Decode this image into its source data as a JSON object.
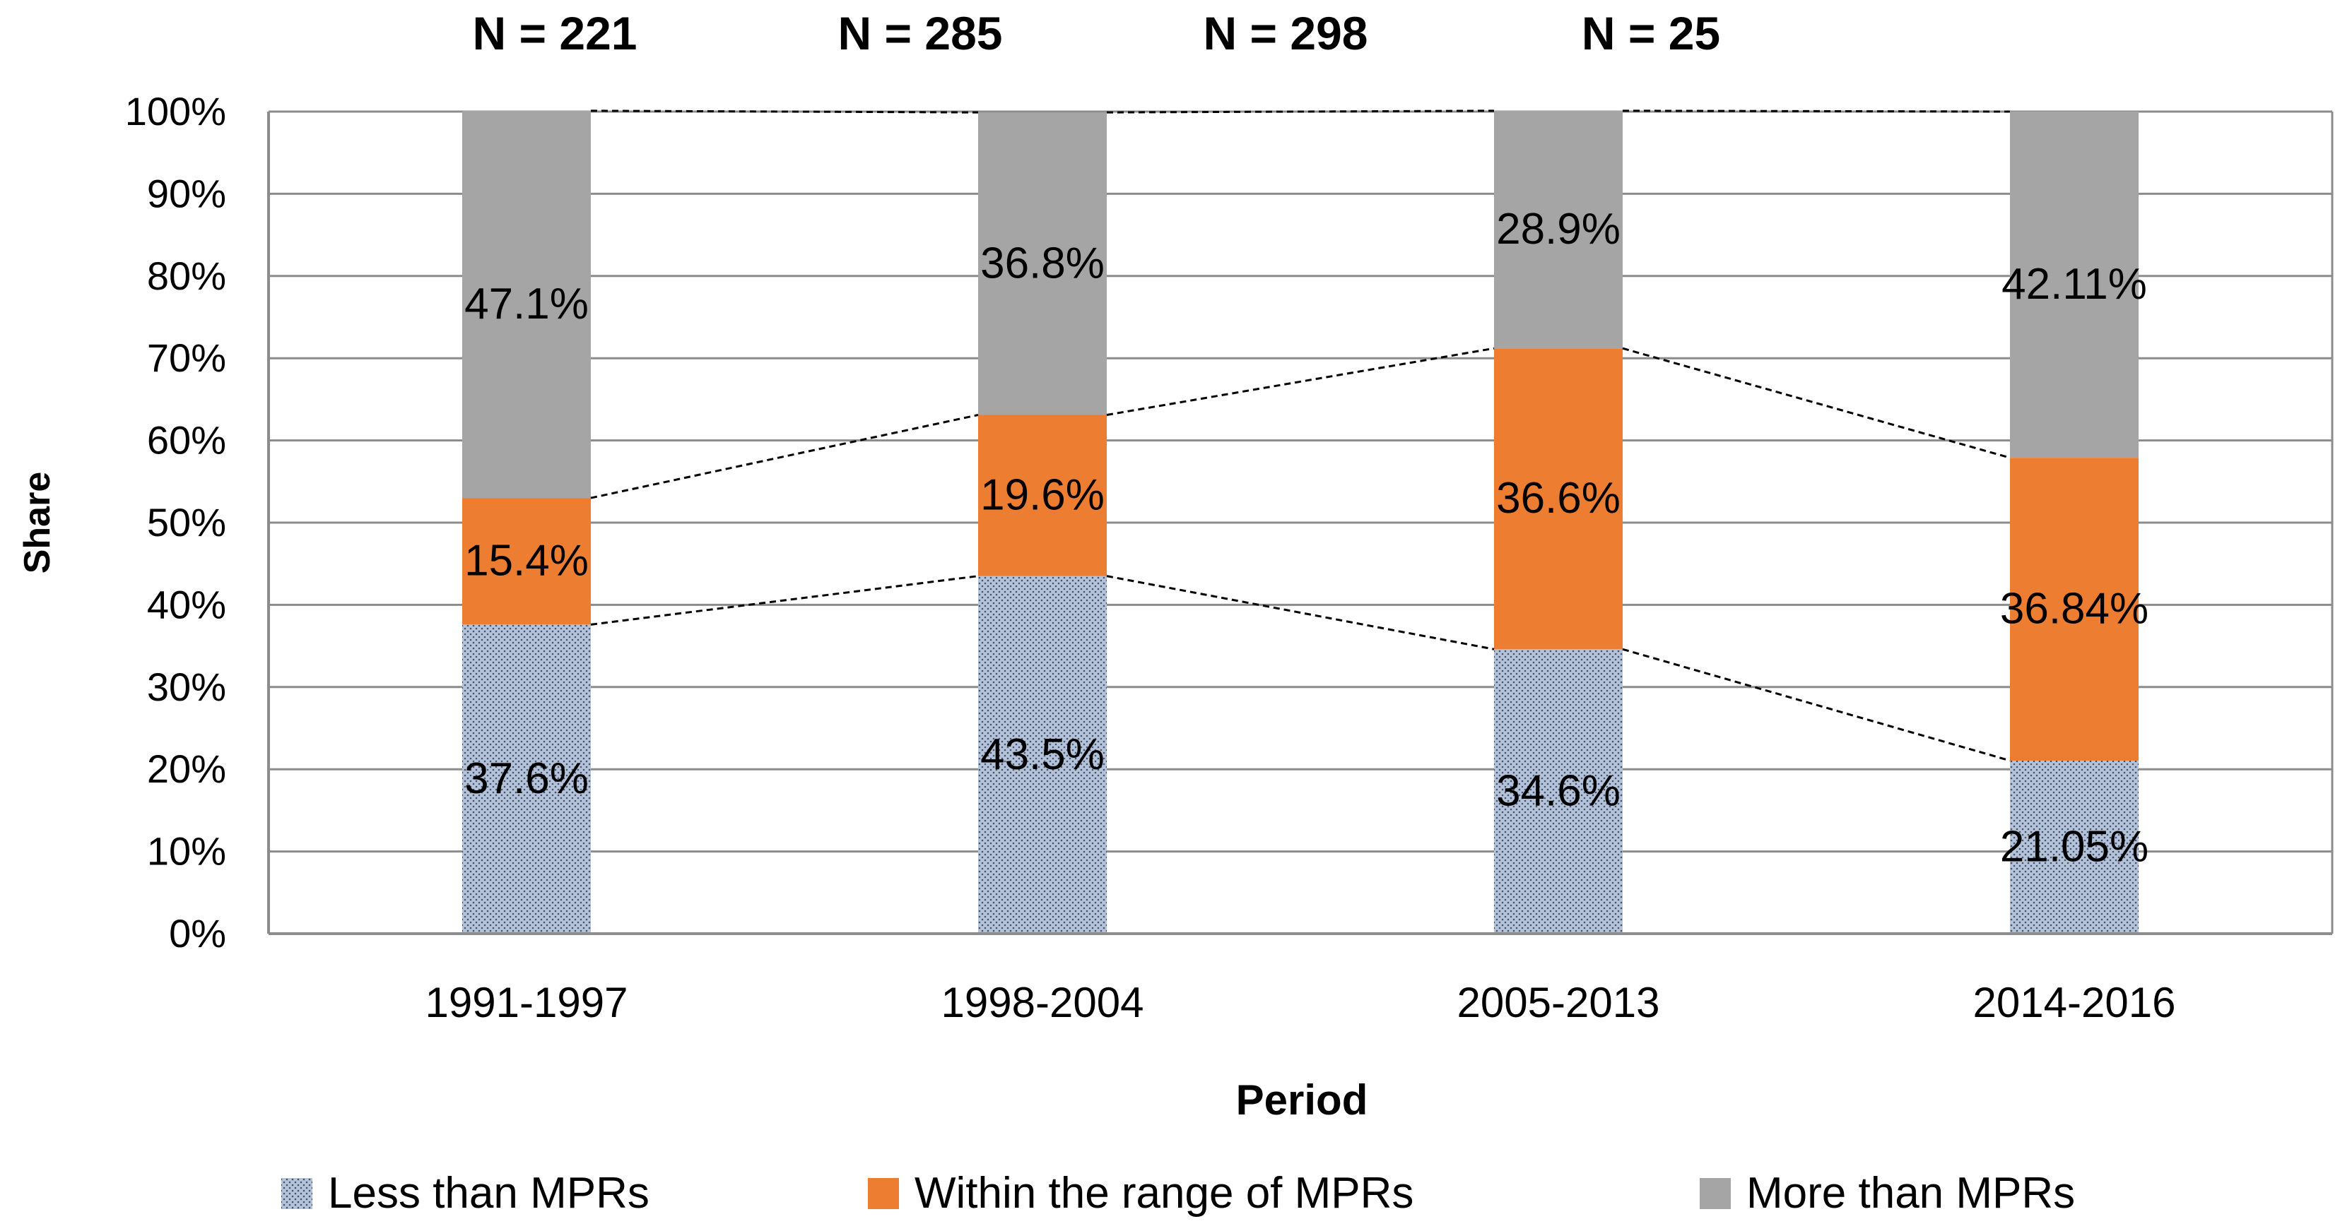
{
  "chart_data": {
    "type": "bar",
    "stacked": true,
    "categories": [
      "1991-1997",
      "1998-2004",
      "2005-2013",
      "2014-2016"
    ],
    "series": [
      {
        "name": "Less than MPRs",
        "values": [
          37.6,
          43.5,
          34.6,
          21.05
        ],
        "labels": [
          "37.6%",
          "43.5%",
          "34.6%",
          "21.05%"
        ],
        "color": "#a6b6d0",
        "pattern": "dotted"
      },
      {
        "name": "Within the range of MPRs",
        "values": [
          15.4,
          19.6,
          36.6,
          36.84
        ],
        "labels": [
          "15.4%",
          "19.6%",
          "36.6%",
          "36.84%"
        ],
        "color": "#ed7d31",
        "pattern": "solid"
      },
      {
        "name": "More than MPRs",
        "values": [
          47.1,
          36.8,
          28.9,
          42.11
        ],
        "labels": [
          "47.1%",
          "36.8%",
          "28.9%",
          "42.11%"
        ],
        "color": "#a5a5a5",
        "pattern": "solid"
      }
    ],
    "n_labels": [
      "N = 221",
      "N = 285",
      "N = 298",
      "N = 25"
    ],
    "xlabel": "Period",
    "ylabel": "Share",
    "ylim": [
      0,
      100
    ],
    "yticks": [
      "0%",
      "10%",
      "20%",
      "30%",
      "40%",
      "50%",
      "60%",
      "70%",
      "80%",
      "90%",
      "100%"
    ],
    "grid": true,
    "legend": "bottom",
    "series_lines": "dashed"
  }
}
